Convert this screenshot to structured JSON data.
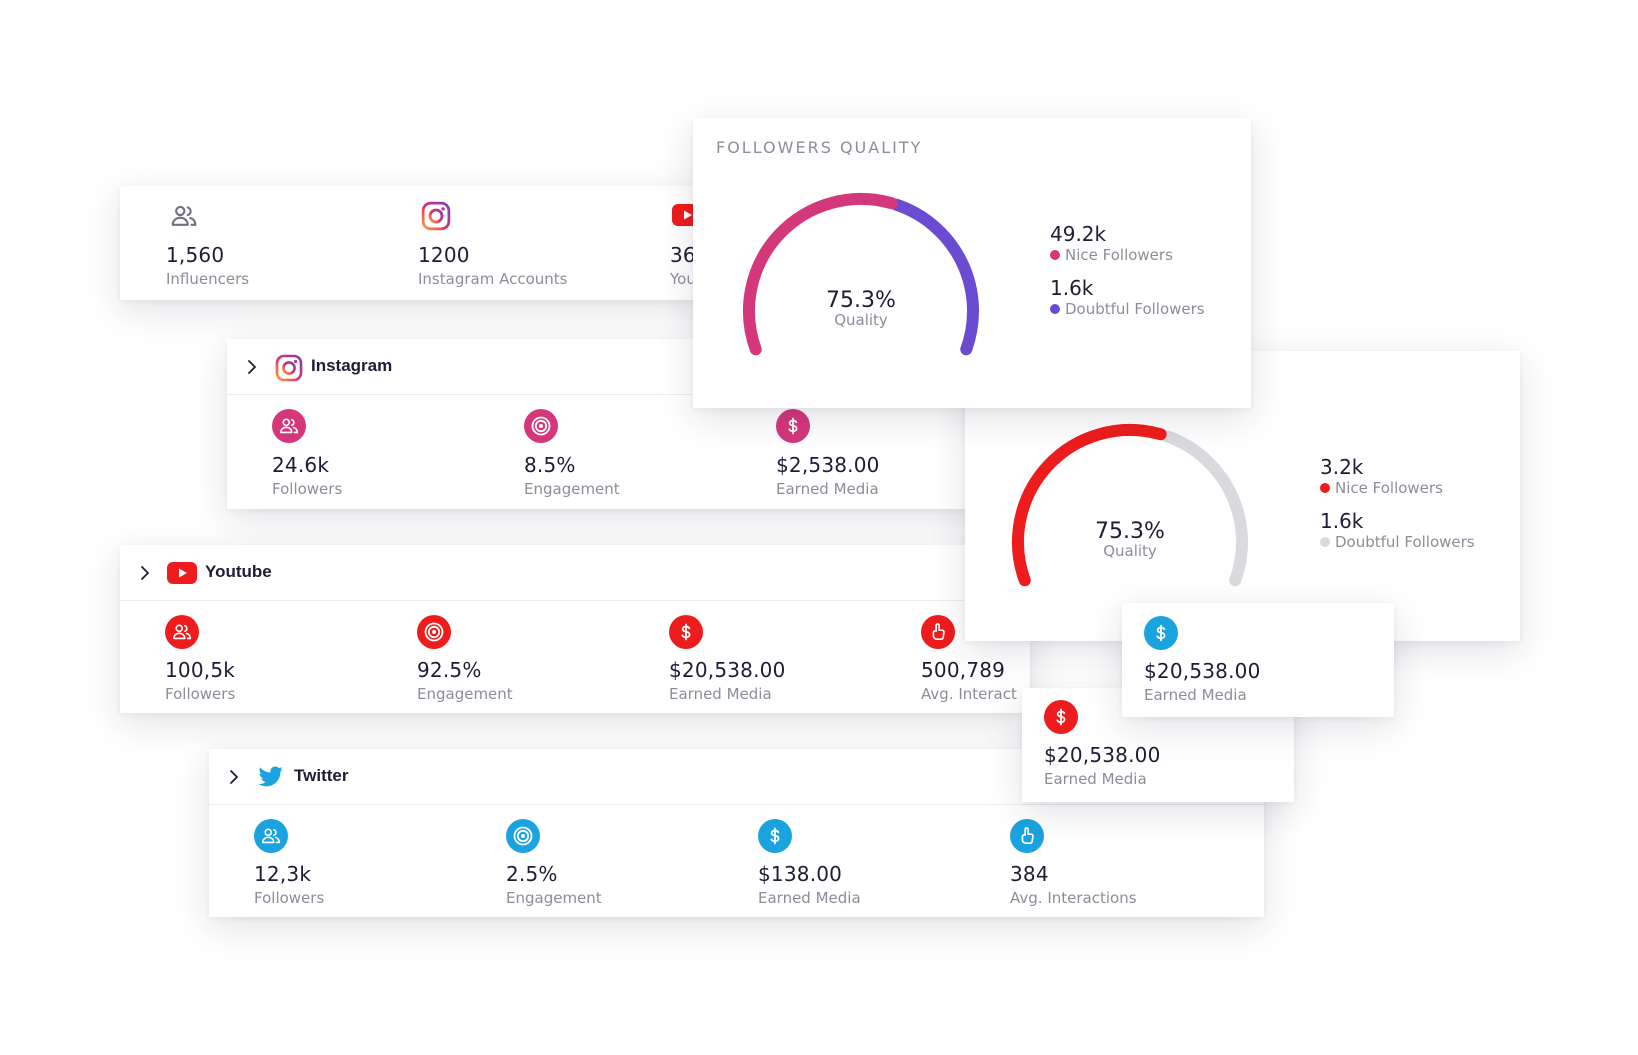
{
  "colors": {
    "instagram": "#d5377b",
    "instagram_alt": "#6a4bd1",
    "youtube": "#ee1c1c",
    "twitter": "#1ba3df",
    "gauge_grey": "#d9d9de"
  },
  "summary": {
    "items": [
      {
        "icon": "users-icon",
        "value": "1,560",
        "label": "Influencers"
      },
      {
        "icon": "instagram-icon",
        "value": "1200",
        "label": "Instagram Accounts"
      },
      {
        "icon": "youtube-icon",
        "value": "36",
        "label": "You"
      }
    ]
  },
  "followers_quality": {
    "title": "FOLLOWERS QUALITY",
    "quality_value": "75.3%",
    "quality_label": "Quality",
    "quality_fraction": 0.753,
    "nice_value": "49.2k",
    "nice_label": "Nice Followers",
    "doubtful_value": "1.6k",
    "doubtful_label": "Doubtful Followers"
  },
  "quality_card_2": {
    "quality_value": "75.3%",
    "quality_label": "Quality",
    "quality_fraction": 0.753,
    "nice_value": "3.2k",
    "nice_label": "Nice Followers",
    "doubtful_value": "1.6k",
    "doubtful_label": "Doubtful Followers"
  },
  "instagram": {
    "name": "Instagram",
    "stats": [
      {
        "icon": "users-icon",
        "value": "24.6k",
        "label": "Followers"
      },
      {
        "icon": "target-icon",
        "value": "8.5%",
        "label": "Engagement"
      },
      {
        "icon": "dollar-icon",
        "value": "$2,538.00",
        "label": "Earned Media"
      }
    ]
  },
  "youtube": {
    "name": "Youtube",
    "stats": [
      {
        "icon": "users-icon",
        "value": "100,5k",
        "label": "Followers"
      },
      {
        "icon": "target-icon",
        "value": "92.5%",
        "label": "Engagement"
      },
      {
        "icon": "dollar-icon",
        "value": "$20,538.00",
        "label": "Earned Media"
      },
      {
        "icon": "thumb-icon",
        "value": "500,789",
        "label": "Avg. Interact"
      }
    ]
  },
  "twitter": {
    "name": "Twitter",
    "stats": [
      {
        "icon": "users-icon",
        "value": "12,3k",
        "label": "Followers"
      },
      {
        "icon": "target-icon",
        "value": "2.5%",
        "label": "Engagement"
      },
      {
        "icon": "dollar-icon",
        "value": "$138.00",
        "label": "Earned Media"
      },
      {
        "icon": "thumb-icon",
        "value": "384",
        "label": "Avg. Interactions"
      }
    ]
  },
  "floating_blue": {
    "icon": "dollar-icon",
    "value": "$20,538.00",
    "label": "Earned Media"
  },
  "floating_red": {
    "icon": "dollar-icon",
    "value": "$20,538.00",
    "label": "Earned Media"
  }
}
